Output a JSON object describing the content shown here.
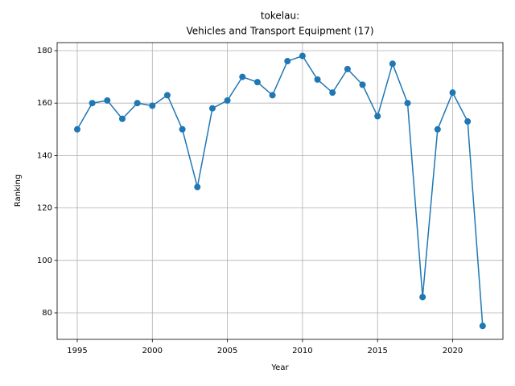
{
  "chart_data": {
    "type": "line",
    "title": "tokelau:",
    "subtitle": "Vehicles and Transport Equipment (17)",
    "x_label": "Year",
    "y_label": "Ranking",
    "x": [
      1995,
      1996,
      1997,
      1998,
      1999,
      2000,
      2001,
      2002,
      2003,
      2004,
      2005,
      2006,
      2007,
      2008,
      2009,
      2010,
      2011,
      2012,
      2013,
      2014,
      2015,
      2016,
      2017,
      2018,
      2019,
      2020,
      2021,
      2022
    ],
    "values": [
      150,
      160,
      161,
      154,
      160,
      159,
      163,
      150,
      128,
      158,
      161,
      170,
      168,
      163,
      176,
      178,
      169,
      164,
      173,
      167,
      155,
      175,
      160,
      86,
      150,
      164,
      153,
      75
    ],
    "color": "#1f77b4",
    "xlim": [
      1993.66,
      2023.35
    ],
    "xticks": [
      1995,
      2000,
      2005,
      2010,
      2015,
      2020
    ],
    "ylim": [
      69.88,
      183.07
    ],
    "yticks": [
      80,
      100,
      120,
      140,
      160,
      180
    ],
    "grid": true,
    "markers": true
  }
}
